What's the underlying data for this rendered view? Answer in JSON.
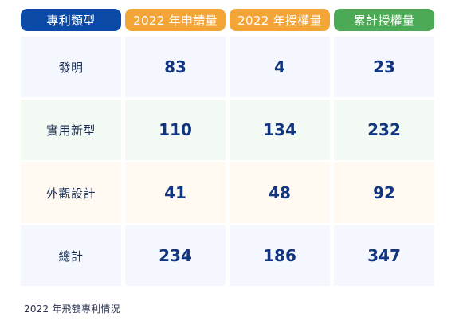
{
  "table": {
    "headers": [
      "專利類型",
      "2022 年申請量",
      "2022 年授權量",
      "累計授權量"
    ],
    "rows": [
      {
        "type": "發明",
        "apply": "83",
        "grant": "4",
        "total": "23"
      },
      {
        "type": "實用新型",
        "apply": "110",
        "grant": "134",
        "total": "232"
      },
      {
        "type": "外觀設計",
        "apply": "41",
        "grant": "48",
        "total": "92"
      },
      {
        "type": "總計",
        "apply": "234",
        "grant": "186",
        "total": "347"
      }
    ]
  },
  "caption": "2022 年飛鶴專利情況",
  "colors": {
    "header_type": "#0b4aa6",
    "header_apply": "#f3a637",
    "header_grant": "#f3a637",
    "header_total": "#4caa57",
    "number_text": "#12357f"
  }
}
